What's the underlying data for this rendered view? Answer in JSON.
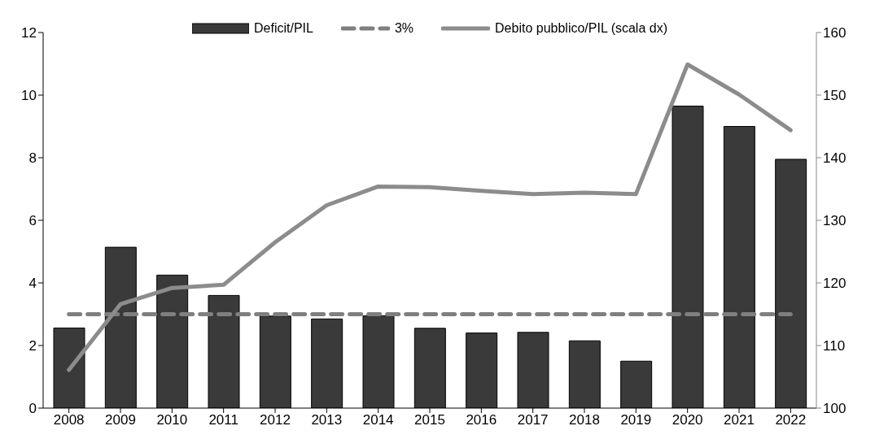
{
  "chart_data": {
    "type": "bar",
    "categories": [
      "2008",
      "2009",
      "2010",
      "2011",
      "2012",
      "2013",
      "2014",
      "2015",
      "2016",
      "2017",
      "2018",
      "2019",
      "2020",
      "2021",
      "2022"
    ],
    "series": [
      {
        "name": "Deficit/PIL",
        "color": "#3a3a3a",
        "values": [
          2.56,
          5.14,
          4.25,
          3.6,
          2.94,
          2.85,
          2.95,
          2.55,
          2.4,
          2.42,
          2.15,
          1.5,
          9.65,
          9.0,
          7.95
        ]
      },
      {
        "name": "3%",
        "type": "line",
        "line_style": "dashed",
        "color": "#7f7f7f",
        "values": [
          3,
          3,
          3,
          3,
          3,
          3,
          3,
          3,
          3,
          3,
          3,
          3,
          3,
          3,
          3
        ]
      },
      {
        "name": "Debito pubblico/PIL (scala dx)",
        "type": "line",
        "axis": "y2",
        "color": "#8c8c8c",
        "values": [
          106.1,
          116.6,
          119.2,
          119.7,
          126.5,
          132.4,
          135.4,
          135.3,
          134.7,
          134.2,
          134.4,
          134.2,
          154.9,
          150.1,
          144.4
        ]
      }
    ],
    "ylim": [
      0,
      12
    ],
    "yticks": [
      0,
      2,
      4,
      6,
      8,
      10,
      12
    ],
    "y2lim": [
      100,
      160
    ],
    "y2ticks": [
      100,
      110,
      120,
      130,
      140,
      150,
      160
    ],
    "legend": "top",
    "marker": "none"
  }
}
